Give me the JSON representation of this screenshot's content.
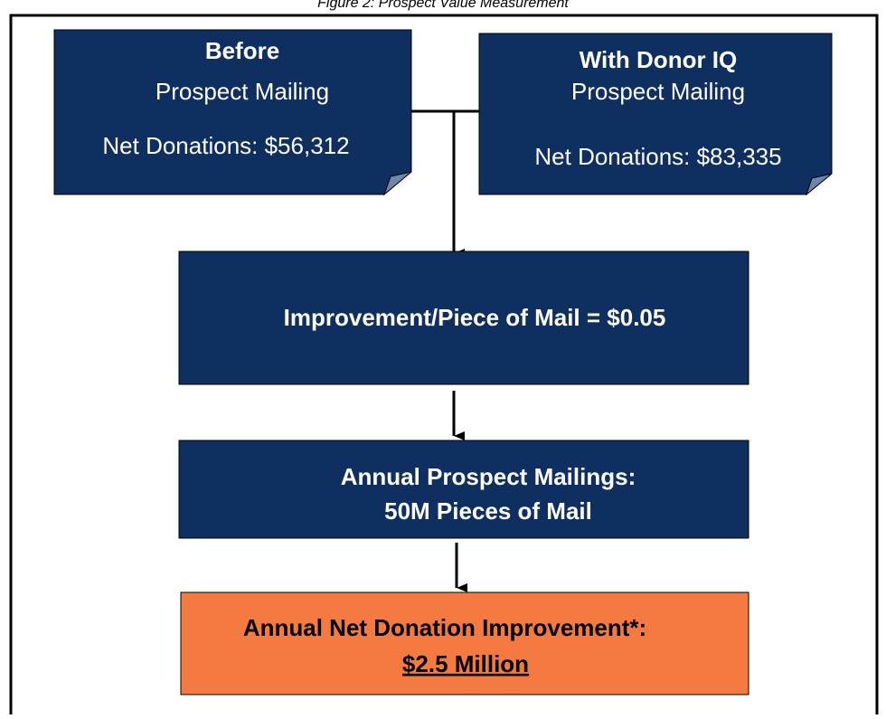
{
  "caption": "Figure 2: Prospect Value Measurement",
  "nodes": [
    {
      "title": "Before",
      "subtitle": "Prospect Mailing",
      "detail": "Net Donations: $56,312"
    },
    {
      "title": "With Donor IQ",
      "subtitle": "Prospect Mailing",
      "detail": "Net Donations: $83,335"
    },
    {
      "label": "Improvement/Piece of Mail = $0.05"
    },
    {
      "lines": [
        "Annual Prospect Mailings:",
        "50M Pieces of Mail"
      ]
    },
    {
      "lines": [
        "Annual Net Donation Improvement*:",
        "$2.5 Million"
      ]
    }
  ]
}
